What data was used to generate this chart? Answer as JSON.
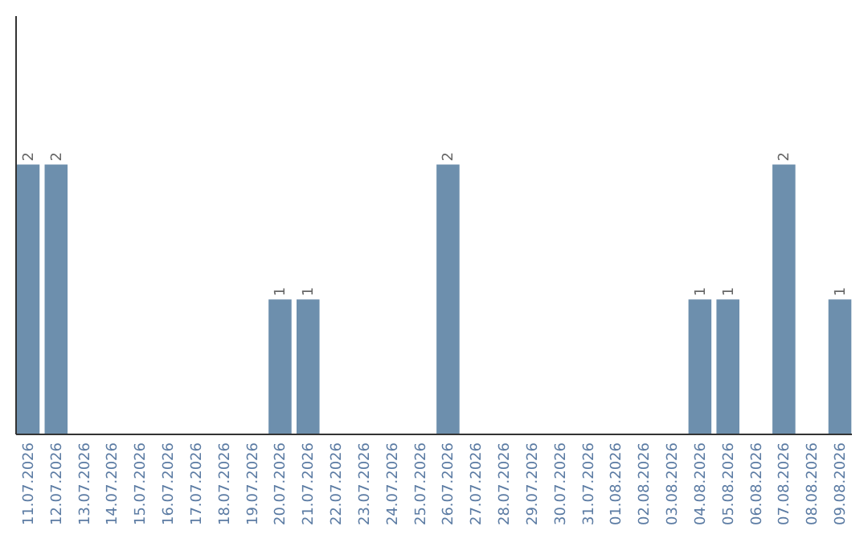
{
  "chart_data": {
    "type": "bar",
    "categories": [
      "11.07.2026",
      "12.07.2026",
      "13.07.2026",
      "14.07.2026",
      "15.07.2026",
      "16.07.2026",
      "17.07.2026",
      "18.07.2026",
      "19.07.2026",
      "20.07.2026",
      "21.07.2026",
      "22.07.2026",
      "23.07.2026",
      "24.07.2026",
      "25.07.2026",
      "26.07.2026",
      "27.07.2026",
      "28.07.2026",
      "29.07.2026",
      "30.07.2026",
      "31.07.2026",
      "01.08.2026",
      "02.08.2026",
      "03.08.2026",
      "04.08.2026",
      "05.08.2026",
      "06.08.2026",
      "07.08.2026",
      "08.08.2026",
      "09.08.2026"
    ],
    "values": [
      2,
      2,
      0,
      0,
      0,
      0,
      0,
      0,
      0,
      1,
      1,
      0,
      0,
      0,
      0,
      2,
      0,
      0,
      0,
      0,
      0,
      0,
      0,
      0,
      1,
      1,
      0,
      2,
      0,
      1
    ],
    "value_labels": [
      "2",
      "2",
      null,
      null,
      null,
      null,
      null,
      null,
      null,
      "1",
      "1",
      null,
      null,
      null,
      null,
      "2",
      null,
      null,
      null,
      null,
      null,
      null,
      null,
      null,
      "1",
      "1",
      null,
      "2",
      null,
      "1"
    ],
    "color": "#6d8fad",
    "ylim": [
      0,
      3.1
    ],
    "tick_labels": "x"
  }
}
